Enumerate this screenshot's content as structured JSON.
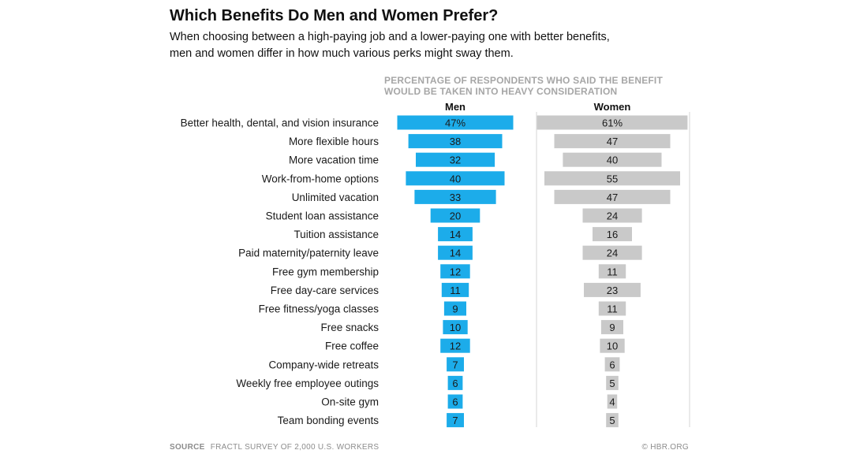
{
  "header": {
    "title": "Which Benefits Do Men and Women Prefer?",
    "subtitle_line1": "When choosing between a high-paying job and a lower-paying one with better benefits,",
    "subtitle_line2": "men and women differ in how much various perks might sway them.",
    "note_line1": "PERCENTAGE OF RESPONDENTS WHO SAID THE BENEFIT",
    "note_line2": "WOULD BE TAKEN INTO HEAVY CONSIDERATION"
  },
  "footer": {
    "source_label": "SOURCE",
    "source_text": "FRACTL SURVEY OF 2,000 U.S. WORKERS",
    "credit": "© HBR.ORG"
  },
  "colors": {
    "men": "#1cacea",
    "women": "#c9c9c9",
    "divider": "#d6d6d6"
  },
  "chart_data": {
    "type": "bar",
    "orientation": "horizontal-centered",
    "title": "Which Benefits Do Men and Women Prefer?",
    "value_unit": "%",
    "categories": [
      "Better health, dental, and vision insurance",
      "More flexible hours",
      "More vacation time",
      "Work-from-home options",
      "Unlimited vacation",
      "Student loan assistance",
      "Tuition assistance",
      "Paid maternity/paternity leave",
      "Free gym membership",
      "Free day-care services",
      "Free fitness/yoga classes",
      "Free snacks",
      "Free coffee",
      "Company-wide retreats",
      "Weekly free employee outings",
      "On-site gym",
      "Team bonding events"
    ],
    "series": [
      {
        "name": "Men",
        "values": [
          47,
          38,
          32,
          40,
          33,
          20,
          14,
          14,
          12,
          11,
          9,
          10,
          12,
          7,
          6,
          6,
          7
        ],
        "labels": [
          "47%",
          "38",
          "32",
          "40",
          "33",
          "20",
          "14",
          "14",
          "12",
          "11",
          "9",
          "10",
          "12",
          "7",
          "6",
          "6",
          "7"
        ]
      },
      {
        "name": "Women",
        "values": [
          61,
          47,
          40,
          55,
          47,
          24,
          16,
          24,
          11,
          23,
          11,
          9,
          10,
          6,
          5,
          4,
          5
        ],
        "labels": [
          "61%",
          "47",
          "40",
          "55",
          "47",
          "24",
          "16",
          "24",
          "11",
          "23",
          "11",
          "9",
          "10",
          "6",
          "5",
          "4",
          "5"
        ]
      }
    ],
    "xlim": [
      0,
      61
    ]
  }
}
